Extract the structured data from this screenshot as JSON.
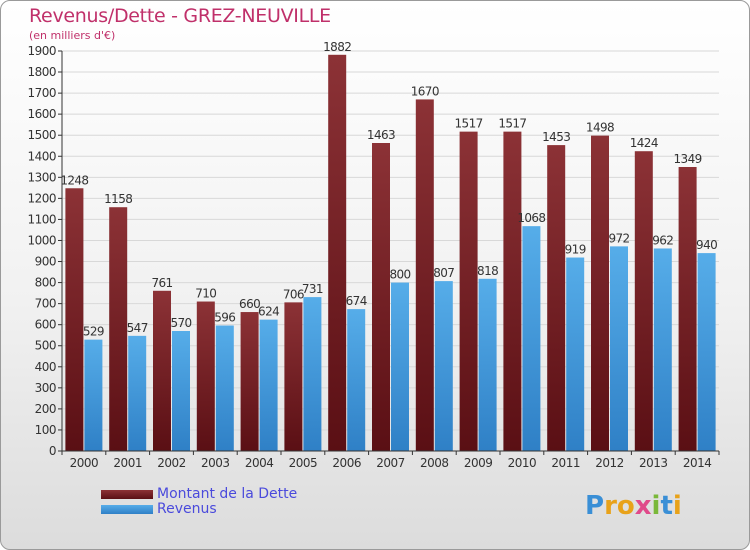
{
  "header": {
    "title": "Revenus/Dette - GREZ-NEUVILLE",
    "subtitle": "(en milliers d'€)"
  },
  "legend": {
    "dette_label": "Montant de la Dette",
    "revenus_label": "Revenus"
  },
  "brand": {
    "letters": [
      "P",
      "r",
      "o",
      "x",
      "i",
      "t",
      "i"
    ],
    "colors": [
      "#3a8fd6",
      "#e8a21a",
      "#e8a21a",
      "#e04a8a",
      "#7ab83a",
      "#3a8fd6",
      "#e8a21a"
    ]
  },
  "colors": {
    "dette": "#7f2a2e",
    "dette_dark": "#5a0f14",
    "revenus": "#4aa2e2",
    "revenus_dark": "#2f80c6",
    "grid": "#d8d8d8",
    "axis": "#333333"
  },
  "chart_data": {
    "type": "bar",
    "categories": [
      "2000",
      "2001",
      "2002",
      "2003",
      "2004",
      "2005",
      "2006",
      "2007",
      "2008",
      "2009",
      "2010",
      "2011",
      "2012",
      "2013",
      "2014"
    ],
    "series": [
      {
        "name": "Montant de la Dette",
        "values": [
          1248,
          1158,
          761,
          710,
          660,
          706,
          1882,
          1463,
          1670,
          1517,
          1517,
          1453,
          1498,
          1424,
          1349
        ]
      },
      {
        "name": "Revenus",
        "values": [
          529,
          547,
          570,
          596,
          624,
          731,
          674,
          800,
          807,
          818,
          1068,
          919,
          972,
          962,
          940
        ]
      }
    ],
    "title": "Revenus/Dette - GREZ-NEUVILLE",
    "ylabel": "(en milliers d'€)",
    "ylim": [
      0,
      1900
    ],
    "ytick_step": 100,
    "grid": true
  }
}
